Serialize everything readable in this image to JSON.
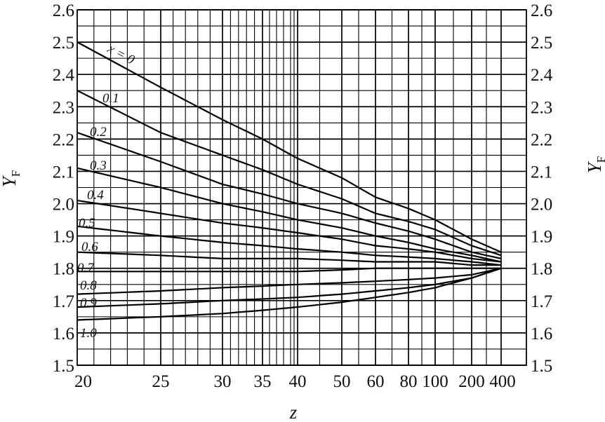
{
  "chart_data": {
    "type": "line",
    "title": "",
    "xlabel": "z",
    "ylabel": "Y",
    "ylabel_sub": "F",
    "ylim": [
      1.5,
      2.6
    ],
    "y_ticks": [
      "1.5",
      "1.6",
      "1.7",
      "1.8",
      "1.9",
      "2.0",
      "2.1",
      "2.2",
      "2.3",
      "2.4",
      "2.5",
      "2.6"
    ],
    "x_ticks": [
      "20",
      "25",
      "30",
      "35",
      "40",
      "50",
      "60",
      "80",
      "100",
      "200",
      "400"
    ],
    "grid": true,
    "legend": "inline curve labels",
    "series": [
      {
        "name": "x = 0",
        "x": [
          20,
          25,
          30,
          40,
          60,
          100,
          200,
          400
        ],
        "values": [
          2.5,
          2.36,
          2.26,
          2.14,
          2.02,
          1.95,
          1.89,
          1.85
        ]
      },
      {
        "name": "0.1",
        "x": [
          20,
          25,
          30,
          40,
          60,
          100,
          200,
          400
        ],
        "values": [
          2.35,
          2.22,
          2.15,
          2.06,
          1.97,
          1.92,
          1.87,
          1.84
        ]
      },
      {
        "name": "0.2",
        "x": [
          20,
          25,
          30,
          40,
          60,
          100,
          200,
          400
        ],
        "values": [
          2.22,
          2.13,
          2.06,
          2.0,
          1.94,
          1.89,
          1.85,
          1.83
        ]
      },
      {
        "name": "0.3",
        "x": [
          20,
          25,
          30,
          40,
          60,
          100,
          200,
          400
        ],
        "values": [
          2.11,
          2.05,
          2.0,
          1.95,
          1.9,
          1.86,
          1.84,
          1.82
        ]
      },
      {
        "name": "0.4",
        "x": [
          20,
          25,
          30,
          40,
          60,
          100,
          200,
          400
        ],
        "values": [
          2.01,
          1.97,
          1.94,
          1.91,
          1.87,
          1.85,
          1.83,
          1.82
        ]
      },
      {
        "name": "0.5",
        "x": [
          20,
          25,
          30,
          40,
          60,
          100,
          200,
          400
        ],
        "values": [
          1.93,
          1.9,
          1.88,
          1.86,
          1.84,
          1.83,
          1.82,
          1.81
        ]
      },
      {
        "name": "0.6",
        "x": [
          20,
          25,
          30,
          40,
          60,
          100,
          200,
          400
        ],
        "values": [
          1.85,
          1.84,
          1.83,
          1.83,
          1.82,
          1.82,
          1.81,
          1.81
        ]
      },
      {
        "name": "0.7",
        "x": [
          20,
          25,
          30,
          40,
          60,
          100,
          200,
          400
        ],
        "values": [
          1.79,
          1.79,
          1.79,
          1.79,
          1.8,
          1.8,
          1.8,
          1.8
        ]
      },
      {
        "name": "0.8",
        "x": [
          20,
          25,
          30,
          40,
          60,
          100,
          200,
          400
        ],
        "values": [
          1.72,
          1.73,
          1.74,
          1.75,
          1.76,
          1.77,
          1.78,
          1.8
        ]
      },
      {
        "name": "0.9",
        "x": [
          20,
          25,
          30,
          40,
          60,
          100,
          200,
          400
        ],
        "values": [
          1.68,
          1.69,
          1.7,
          1.71,
          1.73,
          1.75,
          1.77,
          1.8
        ]
      },
      {
        "name": "1.0",
        "x": [
          20,
          25,
          30,
          40,
          60,
          100,
          200,
          400
        ],
        "values": [
          1.64,
          1.65,
          1.66,
          1.68,
          1.71,
          1.74,
          1.77,
          1.8
        ]
      }
    ]
  }
}
